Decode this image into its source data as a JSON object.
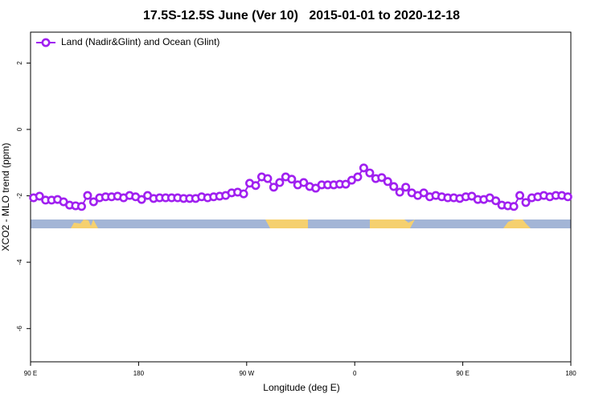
{
  "chart_data": {
    "type": "line",
    "title": "17.5S-12.5S June (Ver 10)   2015-01-01 to 2020-12-18",
    "xlabel": "Longitude (deg E)",
    "ylabel": "XCO2 - MLO trend (ppm)",
    "x": [
      92.5,
      97.5,
      102.5,
      107.5,
      112.5,
      117.5,
      122.5,
      127.5,
      132.5,
      137.5,
      142.5,
      147.5,
      152.5,
      157.5,
      162.5,
      167.5,
      172.5,
      177.5,
      182.5,
      187.5,
      192.5,
      197.5,
      202.5,
      207.5,
      212.5,
      217.5,
      222.5,
      227.5,
      232.5,
      237.5,
      242.5,
      247.5,
      252.5,
      257.5,
      262.5,
      267.5,
      272.5,
      277.5,
      282.5,
      287.5,
      292.5,
      297.5,
      302.5,
      307.5,
      312.5,
      317.5,
      322.5,
      327.5,
      332.5,
      337.5,
      342.5,
      347.5,
      352.5,
      357.5,
      362.5,
      367.5,
      372.5,
      377.5,
      382.5,
      387.5,
      392.5,
      397.5,
      402.5,
      407.5,
      412.5,
      417.5,
      422.5,
      427.5,
      432.5,
      437.5,
      442.5,
      447.5,
      452.5,
      457.5,
      462.5,
      467.5,
      472.5,
      477.5,
      482.5,
      487.5,
      492.5,
      497.5,
      502.5,
      507.5,
      512.5,
      517.5,
      522.5,
      527.5,
      532.5,
      537.5
    ],
    "series": [
      {
        "name": "Land (Nadir&Glint) and Ocean (Glint)",
        "color": "#a020f0",
        "values": [
          -2.06,
          -2.01,
          -2.13,
          -2.13,
          -2.11,
          -2.18,
          -2.28,
          -2.3,
          -2.32,
          -1.99,
          -2.18,
          -2.06,
          -2.03,
          -2.03,
          -2.01,
          -2.06,
          -1.99,
          -2.03,
          -2.11,
          -1.99,
          -2.08,
          -2.06,
          -2.06,
          -2.06,
          -2.06,
          -2.08,
          -2.08,
          -2.08,
          -2.03,
          -2.06,
          -2.03,
          -2.01,
          -1.99,
          -1.91,
          -1.89,
          -1.94,
          -1.62,
          -1.69,
          -1.43,
          -1.48,
          -1.74,
          -1.6,
          -1.43,
          -1.5,
          -1.67,
          -1.6,
          -1.72,
          -1.77,
          -1.67,
          -1.67,
          -1.67,
          -1.65,
          -1.65,
          -1.53,
          -1.43,
          -1.16,
          -1.31,
          -1.48,
          -1.45,
          -1.57,
          -1.72,
          -1.89,
          -1.74,
          -1.91,
          -1.99,
          -1.91,
          -2.03,
          -1.99,
          -2.03,
          -2.06,
          -2.06,
          -2.08,
          -2.03,
          -2.01,
          -2.11,
          -2.11,
          -2.06,
          -2.15,
          -2.28,
          -2.3,
          -2.32,
          -1.99,
          -2.2,
          -2.06,
          -2.03,
          -1.99,
          -2.03,
          -1.99,
          -1.99,
          -2.03
        ]
      }
    ],
    "xlim": [
      90,
      540
    ],
    "xticks": [
      {
        "value": 90,
        "label": "90 E"
      },
      {
        "value": 180,
        "label": "180"
      },
      {
        "value": 270,
        "label": "90 W"
      },
      {
        "value": 360,
        "label": "0"
      },
      {
        "value": 450,
        "label": "90 E"
      },
      {
        "value": 540,
        "label": "180"
      }
    ],
    "ylim": [
      -7,
      2.93
    ],
    "yticks": [
      2,
      0,
      -2,
      -4,
      -6
    ],
    "legend": "top-left"
  }
}
